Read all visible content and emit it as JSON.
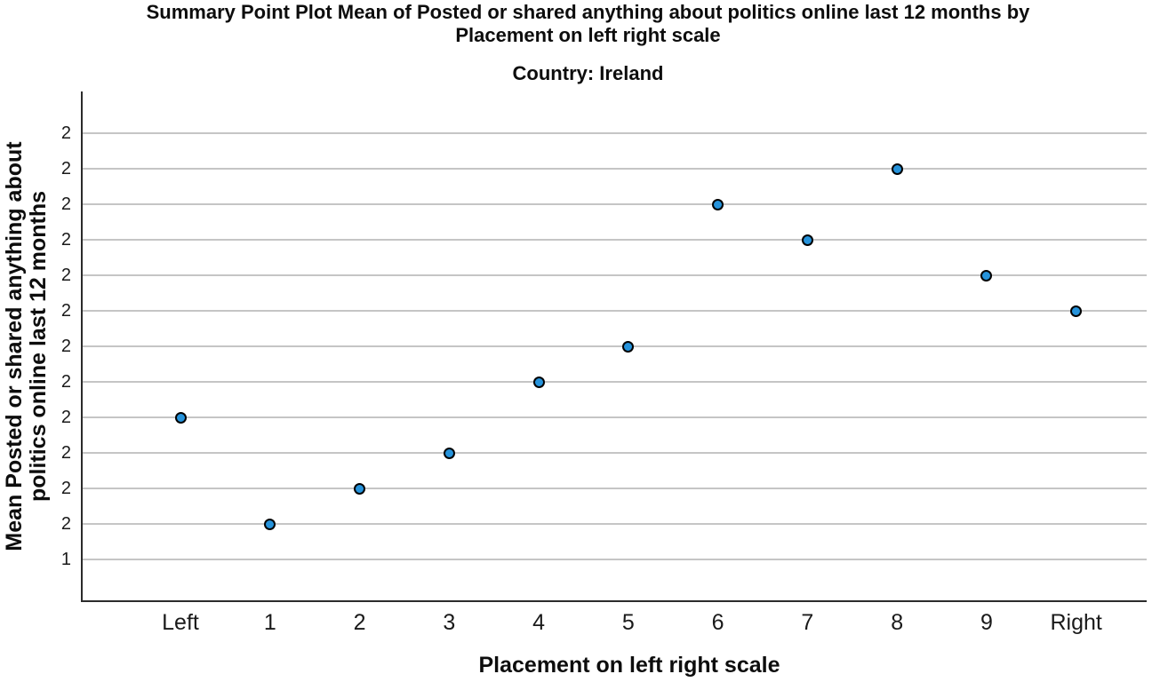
{
  "header": {
    "title_lines": [
      "Summary Point Plot Mean of Posted or shared anything about politics online last 12 months by",
      "Placement on left right scale"
    ],
    "subtitle": "Country: Ireland"
  },
  "chart_data": {
    "type": "scatter",
    "title": "Summary Point Plot Mean of Posted or shared anything about politics online last 12 months by Placement on left right scale",
    "subtitle": "Country: Ireland",
    "xlabel": "Placement on left right scale",
    "ylabel": "Mean Posted or shared anything about politics online last 12 months",
    "ylabel_lines": [
      "Mean Posted or shared anything about",
      "politics online last 12 months"
    ],
    "categories": [
      "Left",
      "1",
      "2",
      "3",
      "4",
      "5",
      "6",
      "7",
      "8",
      "9",
      "Right"
    ],
    "series": [
      {
        "name": "Mean Posted or shared anything about politics online last 12 months",
        "values": [
          1.65,
          1.5,
          1.55,
          1.6,
          1.7,
          1.75,
          1.95,
          1.9,
          2.0,
          1.85,
          1.8
        ]
      }
    ],
    "y_ticks": [
      {
        "value": 1.45,
        "label": "1"
      },
      {
        "value": 1.5,
        "label": "2"
      },
      {
        "value": 1.55,
        "label": "2"
      },
      {
        "value": 1.6,
        "label": "2"
      },
      {
        "value": 1.65,
        "label": "2"
      },
      {
        "value": 1.7,
        "label": "2"
      },
      {
        "value": 1.75,
        "label": "2"
      },
      {
        "value": 1.8,
        "label": "2"
      },
      {
        "value": 1.85,
        "label": "2"
      },
      {
        "value": 1.9,
        "label": "2"
      },
      {
        "value": 1.95,
        "label": "2"
      },
      {
        "value": 2.0,
        "label": "2"
      },
      {
        "value": 2.05,
        "label": "2"
      }
    ],
    "ylim": [
      1.4,
      2.1
    ],
    "grid": "horizontal-only",
    "legend": "none",
    "colors": {
      "point_fill": "#2693DB",
      "point_stroke": "#000000",
      "gridline": "#C5C5C5",
      "axis": "#2B2B2B",
      "text": "#1A1A1A",
      "background": "#FFFFFF"
    }
  }
}
